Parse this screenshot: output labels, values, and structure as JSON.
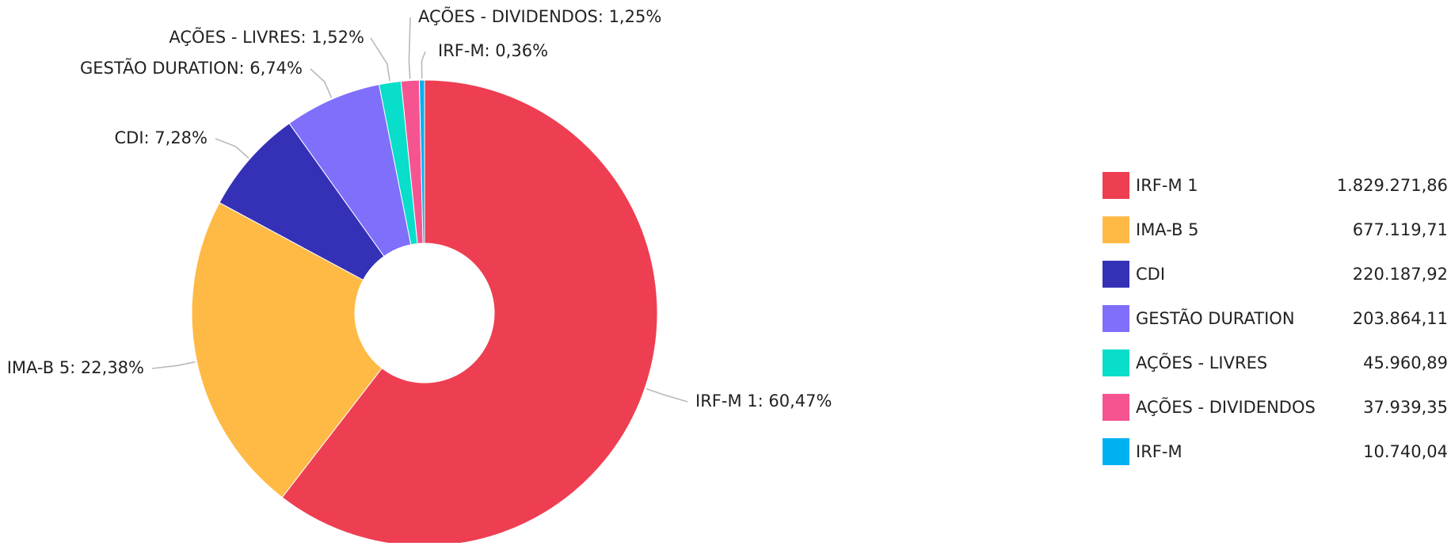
{
  "chart_data": {
    "type": "pie",
    "donut": true,
    "title": "",
    "label_format": "name: percent",
    "slices": [
      {
        "name": "IRF-M 1",
        "value": 1829271.86,
        "value_text": "1.829.271,86",
        "percent": 60.47,
        "label": "IRF-M 1: 60,47%",
        "color": "#EE3E52"
      },
      {
        "name": "IMA-B 5",
        "value": 677119.71,
        "value_text": "677.119,71",
        "percent": 22.38,
        "label": "IMA-B 5: 22,38%",
        "color": "#FFBA45"
      },
      {
        "name": "CDI",
        "value": 220187.92,
        "value_text": "220.187,92",
        "percent": 7.28,
        "label": "CDI: 7,28%",
        "color": "#3431B6"
      },
      {
        "name": "GESTÃO DURATION",
        "value": 203864.11,
        "value_text": "203.864,11",
        "percent": 6.74,
        "label": "GESTÃO DURATION: 6,74%",
        "color": "#806FFB"
      },
      {
        "name": "AÇÕES - LIVRES",
        "value": 45960.89,
        "value_text": "45.960,89",
        "percent": 1.52,
        "label": "AÇÕES - LIVRES: 1,52%",
        "color": "#08DEC9"
      },
      {
        "name": "AÇÕES - DIVIDENDOS",
        "value": 37939.35,
        "value_text": "37.939,35",
        "percent": 1.25,
        "label": "AÇÕES - DIVIDENDOS: 1,25%",
        "color": "#F65490"
      },
      {
        "name": "IRF-M",
        "value": 10740.04,
        "value_text": "10.740,04",
        "percent": 0.36,
        "label": "IRF-M: 0,36%",
        "color": "#00B1F2"
      }
    ],
    "legend": {
      "position": "right"
    }
  }
}
